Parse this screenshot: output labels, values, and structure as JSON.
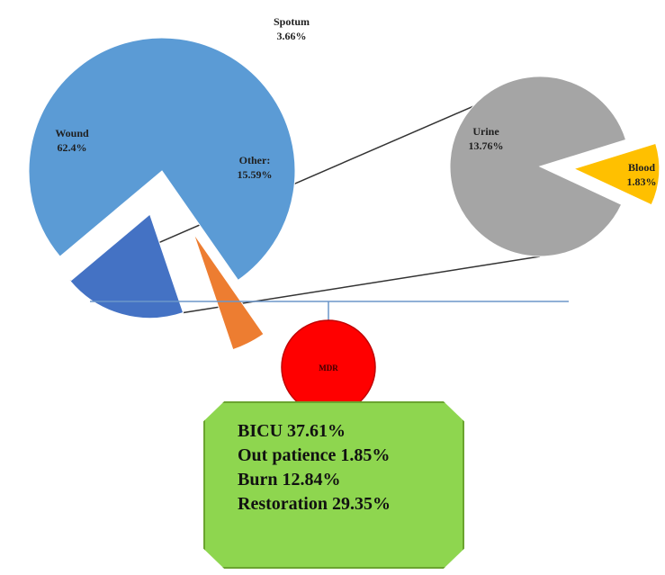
{
  "chart_data": [
    {
      "type": "pie",
      "slices": [
        {
          "label": "Wound",
          "percent_label": "62.4%",
          "value": 62.4,
          "color": "#5b9bd5",
          "exploded": false
        },
        {
          "label": "Spotum",
          "percent_label": "3.66%",
          "value": 3.66,
          "color": "#ed7d31",
          "exploded": true
        },
        {
          "label": "Other:",
          "percent_label": "15.59%",
          "value": 15.59,
          "color": "#4472c4",
          "exploded": true
        }
      ]
    },
    {
      "type": "pie",
      "slices": [
        {
          "label": "Urine",
          "percent_label": "13.76%",
          "value": 13.76,
          "color": "#a5a5a5",
          "exploded": false
        },
        {
          "label": "Blood",
          "percent_label": "1.83%",
          "value": 1.83,
          "color": "#ffc000",
          "exploded": true
        }
      ]
    }
  ],
  "mdr": {
    "label": "MDR",
    "color": "#ff0000",
    "lines": [
      "BICU 37.61%",
      "Out patience 1.85%",
      "Burn 12.84%",
      "Restoration 29.35%"
    ]
  }
}
